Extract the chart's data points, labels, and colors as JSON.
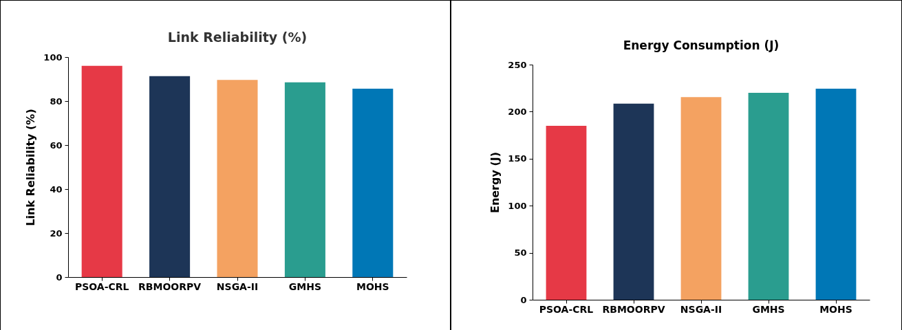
{
  "chart_data": [
    {
      "type": "bar",
      "title": "Link Reliability (%)",
      "ylabel": "Link Reliability (%)",
      "categories": [
        "PSOA-CRL",
        "RBMOORPV",
        "NSGA-II",
        "GMHS",
        "MOHS"
      ],
      "values": [
        96,
        91.3,
        89.6,
        88.5,
        85.6
      ],
      "colors": [
        "#e63946",
        "#1d3557",
        "#f4a261",
        "#2a9d8f",
        "#0077b6"
      ],
      "ylim": [
        0,
        100
      ],
      "yticks": [
        0,
        20,
        40,
        60,
        80,
        100
      ],
      "grid": false
    },
    {
      "type": "bar",
      "title": "Energy Consumption (J)",
      "ylabel": "Energy (J)",
      "categories": [
        "PSOA-CRL",
        "RBMOORPV",
        "NSGA-II",
        "GMHS",
        "MOHS"
      ],
      "values": [
        185,
        208.5,
        215.5,
        220,
        224.5
      ],
      "colors": [
        "#e63946",
        "#1d3557",
        "#f4a261",
        "#2a9d8f",
        "#0077b6"
      ],
      "ylim": [
        0,
        250
      ],
      "yticks": [
        0,
        50,
        100,
        150,
        200,
        250
      ],
      "grid": false
    }
  ]
}
